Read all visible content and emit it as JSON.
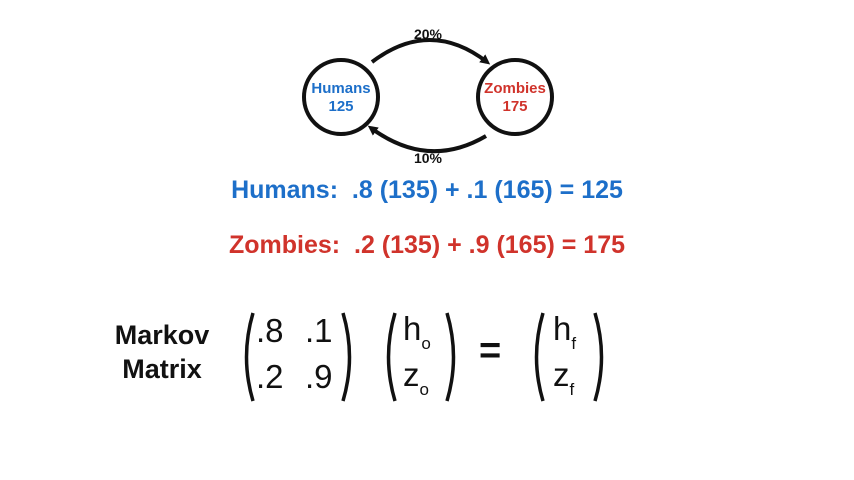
{
  "diagram": {
    "nodes": [
      {
        "id": "humans",
        "label": "Humans",
        "value": "125",
        "color": "#1d6fc9"
      },
      {
        "id": "zombies",
        "label": "Zombies",
        "value": "175",
        "color": "#d0332b"
      }
    ],
    "edges": [
      {
        "from": "humans",
        "to": "zombies",
        "label": "20%"
      },
      {
        "from": "zombies",
        "to": "humans",
        "label": "10%"
      }
    ]
  },
  "equations": {
    "humans": "Humans:  .8 (135) + .1 (165) = 125",
    "zombies": "Zombies:  .2 (135) + .9 (165) = 175"
  },
  "markov": {
    "label_line1": "Markov",
    "label_line2": "Matrix",
    "matrix": [
      [
        ".8",
        ".1"
      ],
      [
        ".2",
        ".9"
      ]
    ],
    "initial_vector": {
      "h": "h",
      "h_sub": "o",
      "z": "z",
      "z_sub": "o"
    },
    "final_vector": {
      "h": "h",
      "h_sub": "f",
      "z": "z",
      "z_sub": "f"
    },
    "equals": "="
  }
}
